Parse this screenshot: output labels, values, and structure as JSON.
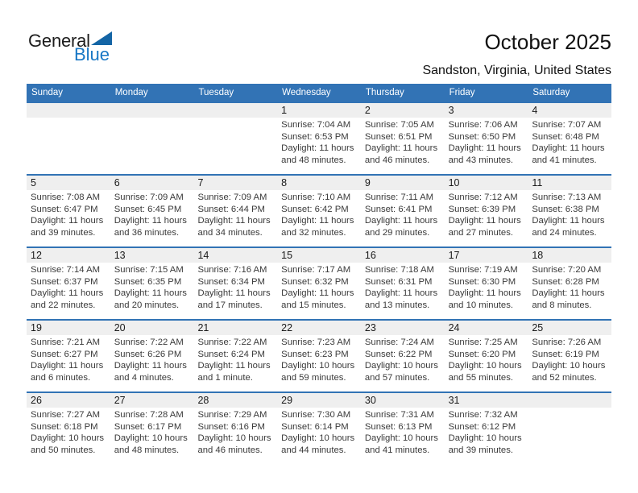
{
  "logo": {
    "part1": "General",
    "part2": "Blue",
    "triangle_icon": "flag-triangle"
  },
  "title": "October 2025",
  "subtitle": "Sandston, Virginia, United States",
  "calendar": {
    "day_headers": [
      "Sunday",
      "Monday",
      "Tuesday",
      "Wednesday",
      "Thursday",
      "Friday",
      "Saturday"
    ],
    "weeks": [
      {
        "days": [
          {
            "num": "",
            "lines": []
          },
          {
            "num": "",
            "lines": []
          },
          {
            "num": "",
            "lines": []
          },
          {
            "num": "1",
            "lines": [
              "Sunrise: 7:04 AM",
              "Sunset: 6:53 PM",
              "Daylight: 11 hours",
              "and 48 minutes."
            ]
          },
          {
            "num": "2",
            "lines": [
              "Sunrise: 7:05 AM",
              "Sunset: 6:51 PM",
              "Daylight: 11 hours",
              "and 46 minutes."
            ]
          },
          {
            "num": "3",
            "lines": [
              "Sunrise: 7:06 AM",
              "Sunset: 6:50 PM",
              "Daylight: 11 hours",
              "and 43 minutes."
            ]
          },
          {
            "num": "4",
            "lines": [
              "Sunrise: 7:07 AM",
              "Sunset: 6:48 PM",
              "Daylight: 11 hours",
              "and 41 minutes."
            ]
          }
        ]
      },
      {
        "days": [
          {
            "num": "5",
            "lines": [
              "Sunrise: 7:08 AM",
              "Sunset: 6:47 PM",
              "Daylight: 11 hours",
              "and 39 minutes."
            ]
          },
          {
            "num": "6",
            "lines": [
              "Sunrise: 7:09 AM",
              "Sunset: 6:45 PM",
              "Daylight: 11 hours",
              "and 36 minutes."
            ]
          },
          {
            "num": "7",
            "lines": [
              "Sunrise: 7:09 AM",
              "Sunset: 6:44 PM",
              "Daylight: 11 hours",
              "and 34 minutes."
            ]
          },
          {
            "num": "8",
            "lines": [
              "Sunrise: 7:10 AM",
              "Sunset: 6:42 PM",
              "Daylight: 11 hours",
              "and 32 minutes."
            ]
          },
          {
            "num": "9",
            "lines": [
              "Sunrise: 7:11 AM",
              "Sunset: 6:41 PM",
              "Daylight: 11 hours",
              "and 29 minutes."
            ]
          },
          {
            "num": "10",
            "lines": [
              "Sunrise: 7:12 AM",
              "Sunset: 6:39 PM",
              "Daylight: 11 hours",
              "and 27 minutes."
            ]
          },
          {
            "num": "11",
            "lines": [
              "Sunrise: 7:13 AM",
              "Sunset: 6:38 PM",
              "Daylight: 11 hours",
              "and 24 minutes."
            ]
          }
        ]
      },
      {
        "days": [
          {
            "num": "12",
            "lines": [
              "Sunrise: 7:14 AM",
              "Sunset: 6:37 PM",
              "Daylight: 11 hours",
              "and 22 minutes."
            ]
          },
          {
            "num": "13",
            "lines": [
              "Sunrise: 7:15 AM",
              "Sunset: 6:35 PM",
              "Daylight: 11 hours",
              "and 20 minutes."
            ]
          },
          {
            "num": "14",
            "lines": [
              "Sunrise: 7:16 AM",
              "Sunset: 6:34 PM",
              "Daylight: 11 hours",
              "and 17 minutes."
            ]
          },
          {
            "num": "15",
            "lines": [
              "Sunrise: 7:17 AM",
              "Sunset: 6:32 PM",
              "Daylight: 11 hours",
              "and 15 minutes."
            ]
          },
          {
            "num": "16",
            "lines": [
              "Sunrise: 7:18 AM",
              "Sunset: 6:31 PM",
              "Daylight: 11 hours",
              "and 13 minutes."
            ]
          },
          {
            "num": "17",
            "lines": [
              "Sunrise: 7:19 AM",
              "Sunset: 6:30 PM",
              "Daylight: 11 hours",
              "and 10 minutes."
            ]
          },
          {
            "num": "18",
            "lines": [
              "Sunrise: 7:20 AM",
              "Sunset: 6:28 PM",
              "Daylight: 11 hours",
              "and 8 minutes."
            ]
          }
        ]
      },
      {
        "days": [
          {
            "num": "19",
            "lines": [
              "Sunrise: 7:21 AM",
              "Sunset: 6:27 PM",
              "Daylight: 11 hours",
              "and 6 minutes."
            ]
          },
          {
            "num": "20",
            "lines": [
              "Sunrise: 7:22 AM",
              "Sunset: 6:26 PM",
              "Daylight: 11 hours",
              "and 4 minutes."
            ]
          },
          {
            "num": "21",
            "lines": [
              "Sunrise: 7:22 AM",
              "Sunset: 6:24 PM",
              "Daylight: 11 hours",
              "and 1 minute."
            ]
          },
          {
            "num": "22",
            "lines": [
              "Sunrise: 7:23 AM",
              "Sunset: 6:23 PM",
              "Daylight: 10 hours",
              "and 59 minutes."
            ]
          },
          {
            "num": "23",
            "lines": [
              "Sunrise: 7:24 AM",
              "Sunset: 6:22 PM",
              "Daylight: 10 hours",
              "and 57 minutes."
            ]
          },
          {
            "num": "24",
            "lines": [
              "Sunrise: 7:25 AM",
              "Sunset: 6:20 PM",
              "Daylight: 10 hours",
              "and 55 minutes."
            ]
          },
          {
            "num": "25",
            "lines": [
              "Sunrise: 7:26 AM",
              "Sunset: 6:19 PM",
              "Daylight: 10 hours",
              "and 52 minutes."
            ]
          }
        ]
      },
      {
        "days": [
          {
            "num": "26",
            "lines": [
              "Sunrise: 7:27 AM",
              "Sunset: 6:18 PM",
              "Daylight: 10 hours",
              "and 50 minutes."
            ]
          },
          {
            "num": "27",
            "lines": [
              "Sunrise: 7:28 AM",
              "Sunset: 6:17 PM",
              "Daylight: 10 hours",
              "and 48 minutes."
            ]
          },
          {
            "num": "28",
            "lines": [
              "Sunrise: 7:29 AM",
              "Sunset: 6:16 PM",
              "Daylight: 10 hours",
              "and 46 minutes."
            ]
          },
          {
            "num": "29",
            "lines": [
              "Sunrise: 7:30 AM",
              "Sunset: 6:14 PM",
              "Daylight: 10 hours",
              "and 44 minutes."
            ]
          },
          {
            "num": "30",
            "lines": [
              "Sunrise: 7:31 AM",
              "Sunset: 6:13 PM",
              "Daylight: 10 hours",
              "and 41 minutes."
            ]
          },
          {
            "num": "31",
            "lines": [
              "Sunrise: 7:32 AM",
              "Sunset: 6:12 PM",
              "Daylight: 10 hours",
              "and 39 minutes."
            ]
          },
          {
            "num": "",
            "lines": []
          }
        ]
      }
    ]
  },
  "colors": {
    "header_blue": "#3273B5",
    "band_gray": "#EFEFEF",
    "logo_text_blue": "#1877C5",
    "logo_triangle_blue": "#1465A5",
    "cell_text": "#3A3A3A",
    "day_number": "#1A1A1A",
    "title_text": "#111111"
  }
}
